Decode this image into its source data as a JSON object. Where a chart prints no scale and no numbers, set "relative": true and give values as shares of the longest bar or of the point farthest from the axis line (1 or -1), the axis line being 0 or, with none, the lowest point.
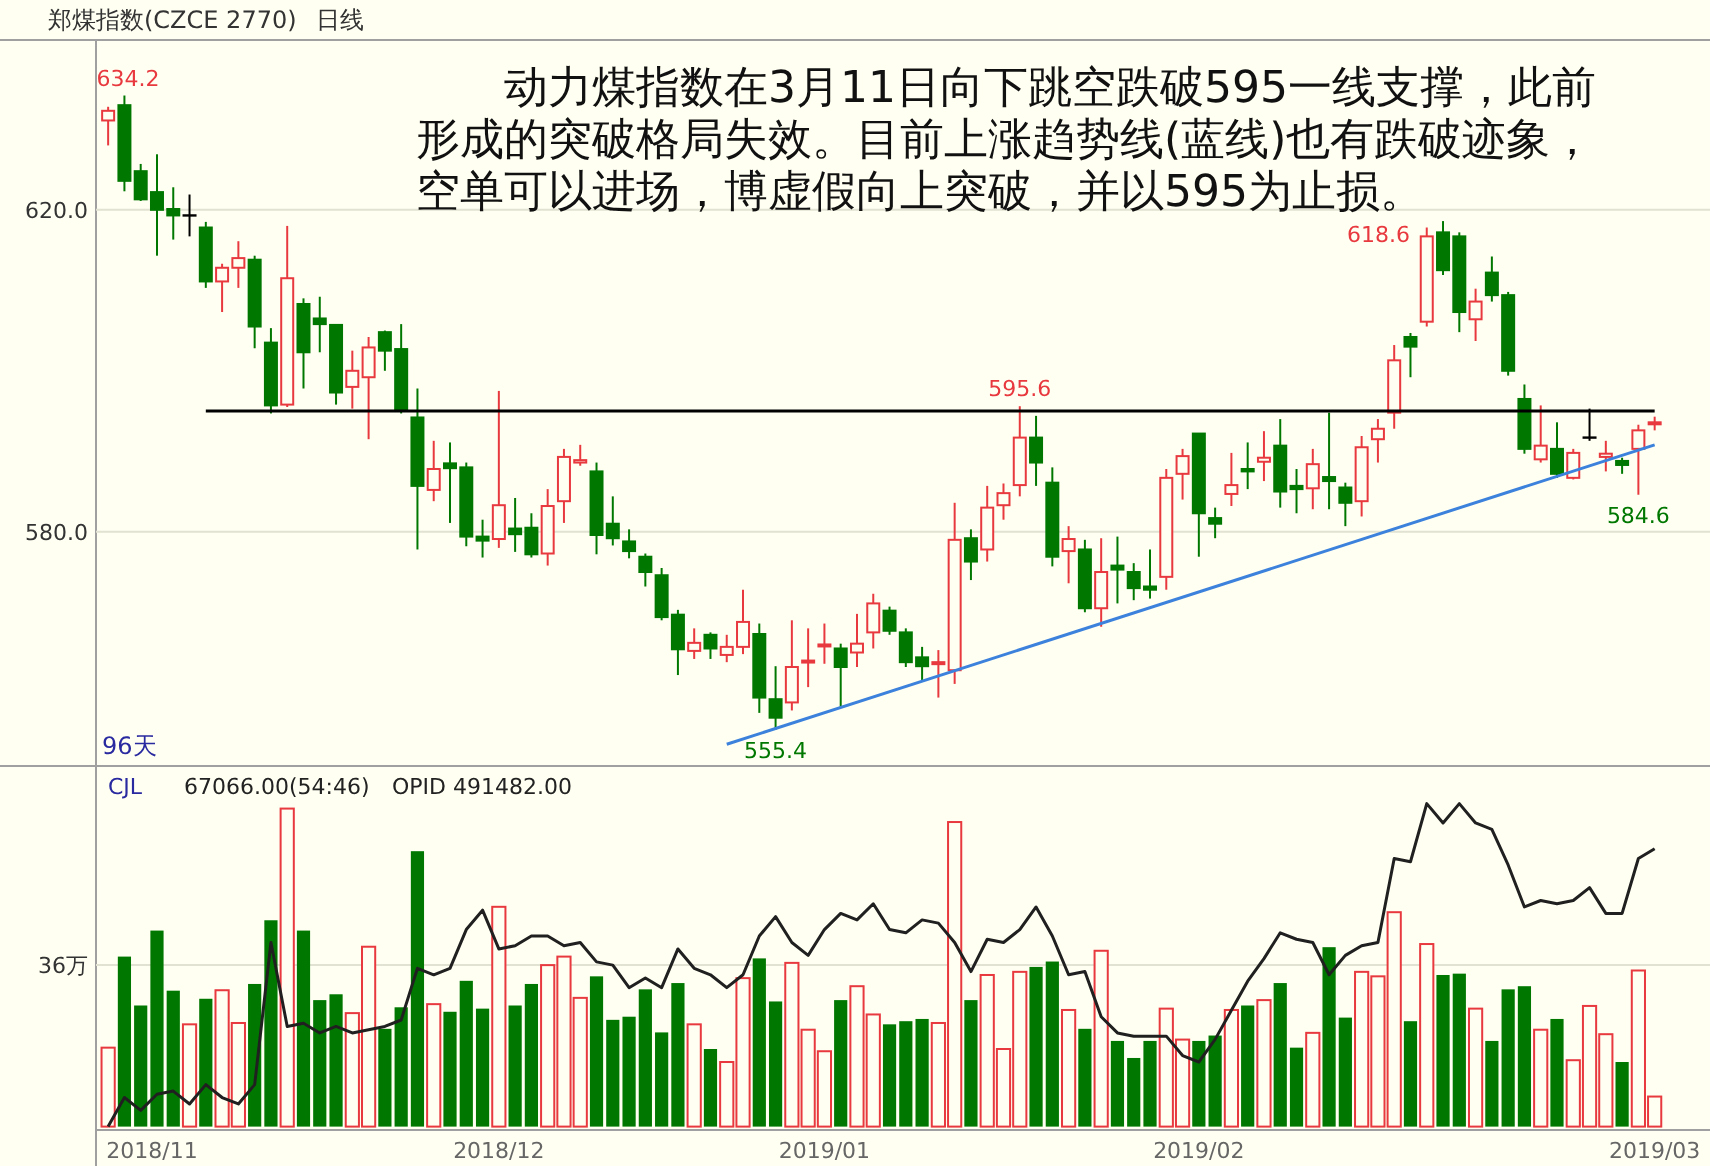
{
  "chart_data": [
    {
      "type": "candlestick",
      "title": "郑煤指数(CZCE 2770)",
      "subtitle": "日线",
      "categories": [
        null,
        null,
        null,
        null,
        null,
        null,
        null,
        null,
        null,
        null,
        null,
        null,
        null,
        null,
        null,
        null,
        null,
        null,
        null,
        null,
        null,
        null,
        null,
        null,
        null,
        null,
        null,
        null,
        null,
        null,
        null,
        null,
        null,
        null,
        null,
        null,
        null,
        null,
        null,
        null,
        null,
        null,
        null,
        null,
        null,
        null,
        null,
        null,
        null,
        null,
        null,
        null,
        null,
        null,
        null,
        null,
        null,
        null,
        null,
        null,
        null,
        null,
        null,
        null,
        null,
        null,
        null,
        null,
        null,
        null,
        null,
        null,
        null,
        null,
        null,
        null,
        null,
        null,
        null,
        null,
        null,
        null,
        null,
        null,
        null,
        null,
        null,
        null,
        null,
        null,
        null,
        null,
        null,
        null,
        null,
        null
      ],
      "ohlc": [
        [
          631.1,
          632.8,
          628.0,
          632.3
        ],
        [
          633.0,
          634.2,
          622.3,
          623.6
        ],
        [
          624.8,
          625.7,
          621.1,
          621.3
        ],
        [
          622.2,
          626.9,
          614.3,
          620.0
        ],
        [
          620.1,
          622.8,
          616.3,
          619.3
        ],
        [
          619.3,
          621.9,
          616.7,
          619.3
        ],
        [
          617.8,
          618.5,
          610.3,
          611.1
        ],
        [
          611.1,
          613.3,
          607.3,
          612.8
        ],
        [
          612.8,
          616.1,
          610.3,
          614.0
        ],
        [
          613.8,
          614.3,
          602.8,
          605.5
        ],
        [
          603.5,
          605.3,
          594.7,
          595.7
        ],
        [
          595.8,
          618.0,
          595.5,
          611.5
        ],
        [
          608.3,
          609.0,
          597.8,
          602.3
        ],
        [
          606.5,
          609.2,
          602.3,
          605.8
        ],
        [
          605.7,
          605.8,
          595.8,
          597.3
        ],
        [
          598.0,
          602.5,
          595.3,
          600.0
        ],
        [
          599.2,
          604.2,
          591.5,
          602.9
        ],
        [
          604.8,
          605.0,
          600.0,
          602.5
        ],
        [
          602.7,
          605.8,
          594.7,
          595.1
        ],
        [
          594.2,
          597.8,
          577.8,
          585.7
        ],
        [
          585.2,
          591.3,
          583.8,
          587.8
        ],
        [
          588.5,
          591.1,
          581.1,
          587.9
        ],
        [
          588.0,
          588.6,
          578.2,
          579.4
        ],
        [
          579.4,
          581.5,
          576.8,
          578.9
        ],
        [
          579.1,
          597.5,
          578.0,
          583.3
        ],
        [
          580.4,
          584.2,
          577.5,
          579.7
        ],
        [
          580.5,
          582.3,
          576.8,
          577.2
        ],
        [
          577.3,
          585.3,
          575.8,
          583.2
        ],
        [
          583.8,
          590.3,
          581.1,
          589.3
        ],
        [
          588.6,
          590.8,
          588.2,
          588.9
        ],
        [
          587.5,
          588.6,
          577.2,
          579.6
        ],
        [
          581.0,
          584.4,
          578.3,
          579.2
        ],
        [
          578.8,
          580.3,
          576.7,
          577.6
        ],
        [
          576.9,
          577.3,
          573.2,
          575.0
        ],
        [
          574.6,
          575.5,
          569.0,
          569.4
        ],
        [
          569.7,
          570.3,
          562.2,
          565.4
        ],
        [
          565.2,
          568.0,
          564.2,
          566.2
        ],
        [
          567.2,
          567.5,
          564.2,
          565.5
        ],
        [
          564.7,
          567.2,
          563.8,
          565.7
        ],
        [
          565.7,
          572.8,
          564.8,
          568.8
        ],
        [
          567.3,
          568.6,
          557.5,
          559.4
        ],
        [
          559.2,
          563.3,
          555.4,
          556.9
        ],
        [
          558.8,
          569.0,
          557.8,
          563.2
        ],
        [
          563.8,
          568.0,
          560.7,
          564.0
        ],
        [
          565.8,
          568.6,
          563.6,
          566.0
        ],
        [
          565.5,
          566.1,
          558.2,
          563.2
        ],
        [
          565.0,
          569.8,
          563.2,
          566.1
        ],
        [
          567.5,
          572.3,
          565.5,
          571.1
        ],
        [
          570.2,
          570.7,
          567.2,
          567.7
        ],
        [
          567.5,
          568.0,
          563.2,
          563.8
        ],
        [
          564.4,
          565.7,
          561.5,
          563.3
        ],
        [
          563.6,
          565.3,
          559.4,
          563.8
        ],
        [
          562.8,
          583.6,
          561.1,
          579.0
        ],
        [
          579.2,
          580.3,
          574.0,
          576.3
        ],
        [
          577.8,
          585.7,
          576.3,
          583.0
        ],
        [
          583.3,
          586.0,
          581.5,
          584.8
        ],
        [
          585.8,
          595.6,
          584.4,
          591.7
        ],
        [
          591.7,
          594.4,
          585.7,
          588.6
        ],
        [
          586.1,
          588.0,
          575.7,
          576.9
        ],
        [
          577.6,
          580.7,
          573.6,
          579.1
        ],
        [
          577.8,
          579.0,
          570.0,
          570.5
        ],
        [
          570.5,
          579.2,
          568.2,
          575.0
        ],
        [
          575.8,
          579.4,
          571.1,
          575.3
        ],
        [
          575.0,
          576.1,
          571.5,
          573.0
        ],
        [
          573.2,
          577.8,
          571.7,
          572.8
        ],
        [
          574.4,
          587.8,
          572.8,
          586.7
        ],
        [
          587.2,
          590.3,
          584.0,
          589.4
        ],
        [
          592.2,
          592.2,
          576.9,
          582.3
        ],
        [
          581.7,
          583.0,
          579.2,
          581.0
        ],
        [
          584.7,
          589.8,
          583.2,
          585.8
        ],
        [
          587.8,
          591.1,
          585.3,
          587.5
        ],
        [
          588.7,
          592.5,
          586.3,
          589.2
        ],
        [
          590.7,
          594.0,
          583.0,
          585.0
        ],
        [
          585.7,
          587.8,
          582.3,
          585.3
        ],
        [
          585.4,
          590.3,
          582.8,
          588.4
        ],
        [
          586.8,
          594.8,
          582.8,
          586.3
        ],
        [
          585.5,
          586.1,
          580.7,
          583.6
        ],
        [
          583.8,
          591.9,
          581.9,
          590.5
        ],
        [
          591.5,
          594.0,
          588.6,
          592.8
        ],
        [
          594.8,
          603.2,
          592.8,
          601.3
        ],
        [
          604.2,
          604.7,
          599.2,
          603.0
        ],
        [
          606.1,
          617.8,
          605.5,
          616.7
        ],
        [
          617.2,
          618.6,
          611.9,
          612.5
        ],
        [
          616.7,
          617.2,
          604.8,
          607.3
        ],
        [
          606.4,
          610.2,
          603.7,
          608.6
        ],
        [
          612.2,
          614.2,
          608.6,
          609.4
        ],
        [
          609.4,
          609.8,
          599.4,
          600.0
        ],
        [
          596.5,
          598.3,
          589.7,
          590.3
        ],
        [
          589.0,
          595.7,
          588.6,
          590.7
        ],
        [
          590.3,
          593.6,
          586.7,
          587.2
        ],
        [
          586.7,
          590.3,
          586.5,
          589.8
        ],
        [
          591.7,
          595.3,
          591.3,
          591.7
        ],
        [
          589.3,
          591.3,
          587.5,
          589.7
        ],
        [
          588.8,
          589.2,
          587.2,
          588.3
        ],
        [
          590.3,
          593.3,
          584.6,
          592.6
        ],
        [
          593.5,
          594.3,
          592.6,
          593.6
        ]
      ],
      "series": [
        {
          "type": "line",
          "color": "#000000",
          "values": [
            null,
            null,
            null,
            null,
            null,
            null,
            595,
            null,
            null,
            null,
            null,
            null,
            null,
            null,
            null,
            null,
            null,
            null,
            null,
            null,
            null,
            null,
            null,
            null,
            null,
            null,
            null,
            null,
            null,
            null,
            null,
            null,
            null,
            null,
            null,
            null,
            null,
            null,
            null,
            null,
            null,
            null,
            null,
            null,
            null,
            null,
            null,
            null,
            null,
            null,
            null,
            null,
            null,
            null,
            null,
            null,
            null,
            null,
            null,
            null,
            null,
            null,
            null,
            null,
            null,
            null,
            null,
            null,
            null,
            null,
            null,
            null,
            null,
            null,
            null,
            null,
            null,
            null,
            null,
            null,
            null,
            null,
            null,
            null,
            null,
            null,
            null,
            null,
            null,
            null,
            null,
            null,
            null,
            null,
            null,
            595
          ]
        },
        {
          "type": "line",
          "color": "#3c82dc",
          "values": [
            null,
            null,
            null,
            null,
            null,
            null,
            null,
            null,
            null,
            null,
            null,
            null,
            null,
            null,
            null,
            null,
            null,
            null,
            null,
            null,
            null,
            null,
            null,
            null,
            null,
            null,
            null,
            null,
            null,
            null,
            null,
            null,
            null,
            null,
            null,
            null,
            null,
            null,
            553.6,
            null,
            null,
            null,
            null,
            null,
            null,
            null,
            null,
            null,
            null,
            null,
            null,
            null,
            null,
            null,
            null,
            null,
            null,
            null,
            null,
            null,
            null,
            null,
            null,
            null,
            null,
            null,
            null,
            null,
            null,
            null,
            null,
            null,
            null,
            null,
            null,
            null,
            null,
            null,
            null,
            null,
            null,
            null,
            null,
            null,
            null,
            null,
            null,
            null,
            null,
            null,
            null,
            null,
            null,
            null,
            null,
            590.8
          ]
        }
      ],
      "ylim": [
        550.9,
        640.6
      ],
      "yticks": [
        {
          "value": 620,
          "label": "620.0"
        },
        {
          "value": 580,
          "label": "580.0"
        }
      ],
      "grid": "y",
      "tick_labels": "y",
      "annotations": [
        "动力煤指数在3月11日向下跳空跌破595一线支撑，此前形成的突破格局失效。目前上涨趋势线(蓝线)也有跌破迹象，空单可以进场，博虚假向上突破，并以595为止损。",
        "96天",
        {
          "text": "634.2",
          "y": 634.2
        },
        {
          "text": "595.6",
          "y": 595.6
        },
        "618.6",
        {
          "text": "555.4",
          "y": 555.4
        },
        {
          "text": "584.6",
          "y": 584.6
        }
      ]
    },
    {
      "type": "bar",
      "title": "CJL",
      "annotations": [
        "67066.00(54:46)"
      ],
      "categories": [
        null,
        null,
        "2018/11",
        null,
        null,
        null,
        null,
        null,
        null,
        null,
        null,
        null,
        null,
        null,
        null,
        null,
        null,
        null,
        null,
        null,
        null,
        null,
        null,
        null,
        "2018/12",
        null,
        null,
        null,
        null,
        null,
        null,
        null,
        null,
        null,
        null,
        null,
        null,
        null,
        null,
        null,
        null,
        null,
        null,
        null,
        "2019/01",
        null,
        null,
        null,
        null,
        null,
        null,
        null,
        null,
        null,
        null,
        null,
        null,
        null,
        null,
        null,
        null,
        null,
        null,
        null,
        null,
        null,
        null,
        "2019/02",
        null,
        null,
        null,
        null,
        null,
        null,
        null,
        null,
        null,
        null,
        null,
        null,
        null,
        null,
        null,
        null,
        null,
        null,
        null,
        null,
        null,
        null,
        null,
        null,
        null,
        null,
        null,
        "2019/03"
      ],
      "series": [
        {
          "type": "bar",
          "colors": [
            "#e8393f",
            "#007800",
            "#007800",
            "#007800",
            "#007800",
            "#e8393f",
            "#007800",
            "#e8393f",
            "#e8393f",
            "#007800",
            "#007800",
            "#e8393f",
            "#007800",
            "#007800",
            "#007800",
            "#e8393f",
            "#e8393f",
            "#007800",
            "#007800",
            "#007800",
            "#e8393f",
            "#007800",
            "#007800",
            "#007800",
            "#e8393f",
            "#007800",
            "#007800",
            "#e8393f",
            "#e8393f",
            "#e8393f",
            "#007800",
            "#007800",
            "#007800",
            "#007800",
            "#007800",
            "#007800",
            "#e8393f",
            "#007800",
            "#e8393f",
            "#e8393f",
            "#007800",
            "#007800",
            "#e8393f",
            "#e8393f",
            "#e8393f",
            "#007800",
            "#e8393f",
            "#e8393f",
            "#007800",
            "#007800",
            "#007800",
            "#e8393f",
            "#e8393f",
            "#007800",
            "#e8393f",
            "#e8393f",
            "#e8393f",
            "#007800",
            "#007800",
            "#e8393f",
            "#007800",
            "#e8393f",
            "#007800",
            "#007800",
            "#007800",
            "#e8393f",
            "#e8393f",
            "#007800",
            "#007800",
            "#e8393f",
            "#007800",
            "#e8393f",
            "#007800",
            "#007800",
            "#e8393f",
            "#007800",
            "#007800",
            "#e8393f",
            "#e8393f",
            "#e8393f",
            "#007800",
            "#e8393f",
            "#007800",
            "#007800",
            "#e8393f",
            "#007800",
            "#007800",
            "#007800",
            "#e8393f",
            "#007800",
            "#e8393f",
            "#e8393f",
            "#e8393f",
            "#007800",
            "#e8393f",
            "#e8393f"
          ],
          "values": [
            17.6,
            37.9,
            27.0,
            43.7,
            30.3,
            22.8,
            28.5,
            30.4,
            23.1,
            31.8,
            46.0,
            70.9,
            43.7,
            28.2,
            29.5,
            25.3,
            40.1,
            21.8,
            26.6,
            61.4,
            27.3,
            25.6,
            32.5,
            26.3,
            49.0,
            27.0,
            31.8,
            36.0,
            37.9,
            28.7,
            33.5,
            23.8,
            24.5,
            30.6,
            21.0,
            32.0,
            22.8,
            17.3,
            14.4,
            33.1,
            37.5,
            27.9,
            36.5,
            21.6,
            16.8,
            28.2,
            31.3,
            25.0,
            22.8,
            23.5,
            24.0,
            23.1,
            67.9,
            28.2,
            33.8,
            17.3,
            34.5,
            35.6,
            36.8,
            26.0,
            21.8,
            39.2,
            19.1,
            15.3,
            19.1,
            26.3,
            19.4,
            19.1,
            20.3,
            26.0,
            27.0,
            28.2,
            32.0,
            17.6,
            20.9,
            40.0,
            24.3,
            34.5,
            33.5,
            47.8,
            23.5,
            40.7,
            33.8,
            34.1,
            26.3,
            19.1,
            30.6,
            31.3,
            21.6,
            24.0,
            14.8,
            26.9,
            20.6,
            14.4,
            34.8,
            6.7
          ]
        }
      ],
      "ylim": [
        0,
        79.5
      ],
      "yticks": [
        {
          "value": 36,
          "label": "36万"
        }
      ],
      "grid": "y"
    },
    {
      "type": "line",
      "relative": true,
      "tick_labels": false,
      "annotations": [
        "OPID 491482.00"
      ],
      "categories": [
        null,
        null,
        null,
        null,
        null,
        null,
        null,
        null,
        null,
        null,
        null,
        null,
        null,
        null,
        null,
        null,
        null,
        null,
        null,
        null,
        null,
        null,
        null,
        null,
        null,
        null,
        null,
        null,
        null,
        null,
        null,
        null,
        null,
        null,
        null,
        null,
        null,
        null,
        null,
        null,
        null,
        null,
        null,
        null,
        null,
        null,
        null,
        null,
        null,
        null,
        null,
        null,
        null,
        null,
        null,
        null,
        null,
        null,
        null,
        null,
        null,
        null,
        null,
        null,
        null,
        null,
        null,
        null,
        null,
        null,
        null,
        null,
        null,
        null,
        null,
        null,
        null,
        null,
        null,
        null,
        null,
        null,
        null,
        null,
        null,
        null,
        null,
        null,
        null,
        null,
        null,
        null,
        null,
        null,
        null,
        null
      ],
      "series": [
        {
          "color": "#202020",
          "values": [
            0,
            0.09,
            0.05,
            0.1,
            0.11,
            0.07,
            0.13,
            0.09,
            0.07,
            0.13,
            0.57,
            0.31,
            0.32,
            0.29,
            0.31,
            0.29,
            0.3,
            0.31,
            0.33,
            0.49,
            0.47,
            0.49,
            0.61,
            0.67,
            0.55,
            0.56,
            0.59,
            0.59,
            0.56,
            0.57,
            0.51,
            0.5,
            0.43,
            0.46,
            0.43,
            0.55,
            0.49,
            0.47,
            0.43,
            0.47,
            0.59,
            0.65,
            0.57,
            0.53,
            0.61,
            0.66,
            0.64,
            0.69,
            0.61,
            0.6,
            0.64,
            0.63,
            0.57,
            0.48,
            0.58,
            0.57,
            0.61,
            0.68,
            0.59,
            0.47,
            0.48,
            0.34,
            0.29,
            0.28,
            0.28,
            0.28,
            0.22,
            0.2,
            0.27,
            0.36,
            0.45,
            0.52,
            0.6,
            0.58,
            0.57,
            0.47,
            0.53,
            0.56,
            0.57,
            0.83,
            0.82,
            1.0,
            0.94,
            1.0,
            0.94,
            0.92,
            0.81,
            0.68,
            0.7,
            0.69,
            0.7,
            0.74,
            0.66,
            0.66,
            0.83,
            0.86
          ]
        }
      ]
    }
  ]
}
